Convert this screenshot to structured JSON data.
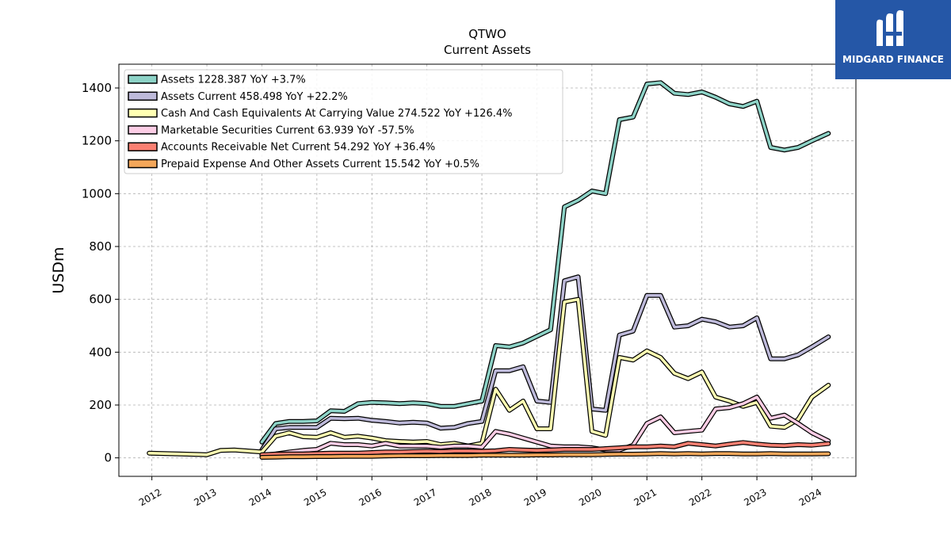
{
  "logo": {
    "text": "MIDGARD FINANCE",
    "icon": "midgard-logo-icon"
  },
  "chart_data": {
    "type": "line",
    "title": "QTWO",
    "subtitle": "Current  Assets",
    "ylabel": "USDm",
    "xlabel": "",
    "xlim": [
      2011.4,
      2024.8
    ],
    "ylim": [
      -70,
      1490
    ],
    "yticks": [
      0,
      200,
      400,
      600,
      800,
      1000,
      1200,
      1400
    ],
    "xticks": [
      "2012",
      "2013",
      "2014",
      "2015",
      "2016",
      "2017",
      "2018",
      "2019",
      "2020",
      "2021",
      "2022",
      "2023",
      "2024"
    ],
    "grid": true,
    "legend_position": "top-left",
    "series": [
      {
        "name": "Assets",
        "legend": "Assets  1228.387 YoY +3.7%",
        "color": "#8dd3c7",
        "x": [
          2014.0,
          2014.25,
          2014.5,
          2014.75,
          2015.0,
          2015.25,
          2015.5,
          2015.75,
          2016.0,
          2016.25,
          2016.5,
          2016.75,
          2017.0,
          2017.25,
          2017.5,
          2017.75,
          2018.0,
          2018.25,
          2018.5,
          2018.75,
          2019.0,
          2019.25,
          2019.5,
          2019.75,
          2020.0,
          2020.25,
          2020.5,
          2020.75,
          2021.0,
          2021.25,
          2021.5,
          2021.75,
          2022.0,
          2022.25,
          2022.5,
          2022.75,
          2023.0,
          2023.25,
          2023.5,
          2023.75,
          2024.0,
          2024.3
        ],
        "y": [
          60,
          130,
          138,
          138,
          140,
          178,
          176,
          205,
          210,
          208,
          205,
          208,
          205,
          195,
          195,
          205,
          215,
          425,
          420,
          435,
          460,
          485,
          950,
          975,
          1010,
          1000,
          1280,
          1290,
          1415,
          1420,
          1380,
          1375,
          1385,
          1365,
          1340,
          1330,
          1350,
          1175,
          1165,
          1175,
          1200,
          1228
        ]
      },
      {
        "name": "Assets Current",
        "legend": "Assets Current  458.498 YoY +22.2%",
        "color": "#bebada",
        "x": [
          2014.0,
          2014.25,
          2014.5,
          2014.75,
          2015.0,
          2015.25,
          2015.5,
          2015.75,
          2016.0,
          2016.25,
          2016.5,
          2016.75,
          2017.0,
          2017.25,
          2017.5,
          2017.75,
          2018.0,
          2018.25,
          2018.5,
          2018.75,
          2019.0,
          2019.25,
          2019.5,
          2019.75,
          2020.0,
          2020.25,
          2020.5,
          2020.75,
          2021.0,
          2021.25,
          2021.5,
          2021.75,
          2022.0,
          2022.25,
          2022.5,
          2022.75,
          2023.0,
          2023.25,
          2023.5,
          2023.75,
          2024.0,
          2024.3
        ],
        "y": [
          30,
          110,
          115,
          115,
          115,
          150,
          148,
          150,
          142,
          138,
          132,
          135,
          132,
          112,
          115,
          130,
          138,
          330,
          330,
          345,
          215,
          210,
          670,
          685,
          185,
          180,
          465,
          480,
          615,
          615,
          495,
          500,
          525,
          515,
          495,
          500,
          530,
          375,
          375,
          390,
          420,
          458
        ]
      },
      {
        "name": "Cash And Cash Equivalents At Carrying Value",
        "legend": "Cash And Cash Equivalents At Carrying Value  274.522 YoY +126.4%",
        "color": "#ffffb3",
        "x": [
          2011.95,
          2013.0,
          2013.25,
          2013.5,
          2014.0,
          2014.25,
          2014.5,
          2014.75,
          2015.0,
          2015.25,
          2015.5,
          2015.75,
          2016.0,
          2016.25,
          2016.5,
          2016.75,
          2017.0,
          2017.25,
          2017.5,
          2017.75,
          2018.0,
          2018.25,
          2018.5,
          2018.75,
          2019.0,
          2019.25,
          2019.5,
          2019.75,
          2020.0,
          2020.25,
          2020.5,
          2020.75,
          2021.0,
          2021.25,
          2021.5,
          2021.75,
          2022.0,
          2022.25,
          2022.5,
          2022.75,
          2023.0,
          2023.25,
          2023.5,
          2023.75,
          2024.0,
          2024.3
        ],
        "y": [
          18,
          12,
          28,
          30,
          22,
          82,
          95,
          80,
          78,
          95,
          78,
          82,
          75,
          65,
          62,
          60,
          62,
          50,
          55,
          45,
          55,
          260,
          180,
          215,
          110,
          110,
          590,
          600,
          100,
          85,
          380,
          370,
          405,
          380,
          320,
          300,
          325,
          230,
          215,
          195,
          210,
          120,
          115,
          145,
          230,
          275
        ]
      },
      {
        "name": "Marketable Securities Current",
        "legend": "Marketable Securities Current  63.939 YoY -57.5%",
        "color": "#fccde5",
        "x": [
          2014.0,
          2014.25,
          2014.5,
          2014.75,
          2015.0,
          2015.25,
          2015.5,
          2015.75,
          2016.0,
          2016.25,
          2016.5,
          2016.75,
          2017.0,
          2017.25,
          2017.5,
          2017.75,
          2018.0,
          2018.25,
          2018.5,
          2018.75,
          2019.0,
          2019.25,
          2019.5,
          2019.75,
          2020.0,
          2020.25,
          2020.5,
          2020.75,
          2021.0,
          2021.25,
          2021.5,
          2021.75,
          2022.0,
          2022.25,
          2022.5,
          2022.75,
          2023.0,
          2023.25,
          2023.5,
          2023.75,
          2024.0,
          2024.3
        ],
        "y": [
          10,
          15,
          22,
          28,
          32,
          55,
          50,
          50,
          45,
          55,
          45,
          45,
          45,
          40,
          45,
          45,
          40,
          100,
          90,
          75,
          60,
          45,
          42,
          42,
          38,
          30,
          30,
          48,
          130,
          155,
          95,
          100,
          105,
          185,
          190,
          205,
          230,
          150,
          162,
          130,
          95,
          64
        ]
      },
      {
        "name": "Accounts Receivable Net Current",
        "legend": "Accounts Receivable Net Current  54.292 YoY +36.4%",
        "color": "#fb8072",
        "x": [
          2014.0,
          2014.25,
          2014.5,
          2014.75,
          2015.0,
          2015.25,
          2015.5,
          2015.75,
          2016.0,
          2016.25,
          2016.5,
          2016.75,
          2017.0,
          2017.25,
          2017.5,
          2017.75,
          2018.0,
          2018.25,
          2018.5,
          2018.75,
          2019.0,
          2019.25,
          2019.5,
          2019.75,
          2020.0,
          2020.25,
          2020.5,
          2020.75,
          2021.0,
          2021.25,
          2021.5,
          2021.75,
          2022.0,
          2022.25,
          2022.5,
          2022.75,
          2023.0,
          2023.25,
          2023.5,
          2023.75,
          2024.0,
          2024.3
        ],
        "y": [
          12,
          14,
          15,
          15,
          16,
          18,
          18,
          18,
          20,
          22,
          22,
          24,
          25,
          24,
          26,
          26,
          25,
          27,
          32,
          30,
          28,
          30,
          32,
          32,
          32,
          35,
          38,
          42,
          42,
          45,
          42,
          55,
          50,
          45,
          52,
          58,
          52,
          48,
          46,
          50,
          48,
          54
        ]
      },
      {
        "name": "Prepaid Expense And Other Assets Current",
        "legend": "Prepaid Expense And Other Assets Current  15.542 YoY +0.5%",
        "color": "#f4a75a",
        "x": [
          2014.0,
          2014.25,
          2014.5,
          2014.75,
          2015.0,
          2015.25,
          2015.5,
          2015.75,
          2016.0,
          2016.25,
          2016.5,
          2016.75,
          2017.0,
          2017.25,
          2017.5,
          2017.75,
          2018.0,
          2018.25,
          2018.5,
          2018.75,
          2019.0,
          2019.25,
          2019.5,
          2019.75,
          2020.0,
          2020.25,
          2020.5,
          2020.75,
          2021.0,
          2021.25,
          2021.5,
          2021.75,
          2022.0,
          2022.25,
          2022.5,
          2022.75,
          2023.0,
          2023.25,
          2023.5,
          2023.75,
          2024.0,
          2024.3
        ],
        "y": [
          2,
          3,
          4,
          4,
          5,
          5,
          6,
          6,
          6,
          7,
          8,
          8,
          8,
          9,
          9,
          9,
          10,
          10,
          10,
          10,
          11,
          11,
          12,
          12,
          12,
          13,
          14,
          14,
          15,
          16,
          15,
          16,
          15,
          16,
          16,
          15,
          15,
          16,
          15,
          15,
          15,
          15.5
        ]
      }
    ]
  }
}
